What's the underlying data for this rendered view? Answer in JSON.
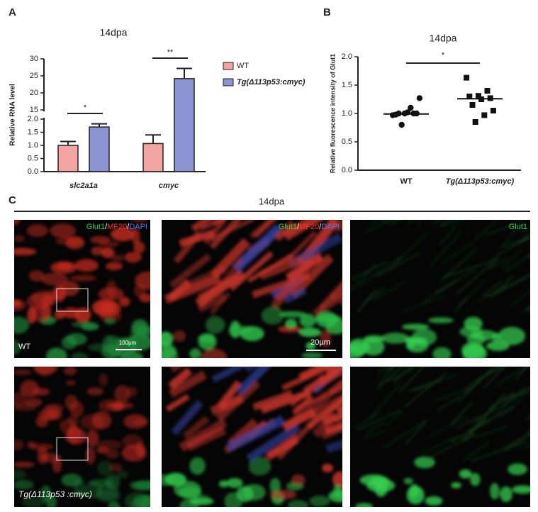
{
  "panel_labels": [
    "A",
    "B",
    "C"
  ],
  "chart_data": [
    {
      "type": "bar",
      "title": "14dpa",
      "y_label": "Relative RNA level",
      "categories": [
        "slc2a1a",
        "cmyc"
      ],
      "series": [
        {
          "name": "WT",
          "color": "#f4a3a3",
          "values": [
            1.0,
            1.07
          ],
          "errors": [
            0.15,
            0.33
          ]
        },
        {
          "name": "Tg(Δ113p53:cmyc)",
          "color": "#8b93d2",
          "values": [
            1.7,
            24.2
          ],
          "errors": [
            0.12,
            3.0
          ]
        }
      ],
      "ylim": [
        0,
        30
      ],
      "axis_break": [
        2,
        15
      ],
      "yticks": [
        {
          "value": 0,
          "label": "0.0"
        },
        {
          "value": 0.5,
          "label": "0.5"
        },
        {
          "value": 1,
          "label": "1.0"
        },
        {
          "value": 1.5,
          "label": "1.5"
        },
        {
          "value": 2,
          "label": "2.0"
        },
        15,
        20,
        25,
        30
      ],
      "annotations": [
        "*",
        "**"
      ]
    },
    {
      "type": "dot",
      "title": "14dpa",
      "y_label": "Relative fluorescence intensity of Glut1",
      "categories": [
        "WT",
        "Tg(Δ113p53:cmyc)"
      ],
      "groups": [
        {
          "values": [
            0.97,
            1.0,
            1.0,
            0.98,
            1.0,
            1.02,
            1.0,
            1.27,
            1.1,
            0.8
          ],
          "median": 0.99
        },
        {
          "values": [
            1.63,
            1.4,
            1.31,
            1.3,
            1.27,
            1.25,
            1.15,
            1.05,
            0.97,
            0.85
          ],
          "median": 1.26
        }
      ],
      "markers": [
        "circle",
        "square"
      ],
      "color": "#111111",
      "ylim": [
        0,
        2
      ],
      "yticks": [
        {
          "value": 0,
          "label": "0.0"
        },
        {
          "value": 0.5,
          "label": "0.5"
        },
        {
          "value": 1,
          "label": "1.0"
        },
        {
          "value": 1.5,
          "label": "1.5"
        },
        {
          "value": 2,
          "label": "2.0"
        }
      ],
      "annotations": [
        "*"
      ]
    }
  ],
  "panel_c": {
    "title": "14dpa",
    "merge_label": [
      "Glut1",
      "/",
      "MF20",
      "/",
      "DAPI"
    ],
    "green_label": "Glut1",
    "rows": [
      {
        "label": "WT",
        "scale_bars": [
          "100µm",
          "20µm"
        ]
      },
      {
        "label": "Tg(Δ113p53 :cmyc)"
      }
    ]
  }
}
